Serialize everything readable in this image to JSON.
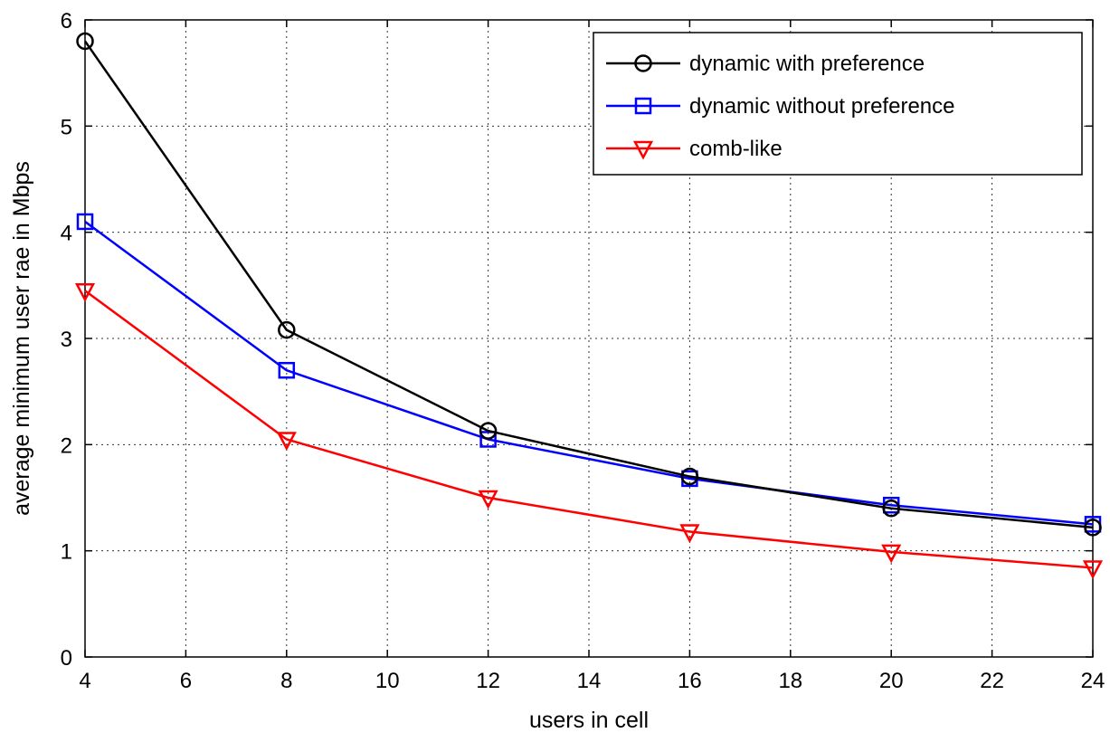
{
  "chart_data": {
    "type": "line",
    "title": "",
    "xlabel": "users in cell",
    "ylabel": "average minimum user rae in Mbps",
    "xlim": [
      4,
      24
    ],
    "ylim": [
      0,
      6
    ],
    "xticks": [
      4,
      6,
      8,
      10,
      12,
      14,
      16,
      18,
      20,
      22,
      24
    ],
    "yticks": [
      0,
      1,
      2,
      3,
      4,
      5,
      6
    ],
    "grid": true,
    "legend_position": "top-right",
    "x": [
      4,
      8,
      12,
      16,
      20,
      24
    ],
    "series": [
      {
        "name": "dynamic with preference",
        "color": "#000000",
        "marker": "circle",
        "values": [
          5.8,
          3.08,
          2.13,
          1.7,
          1.4,
          1.22
        ]
      },
      {
        "name": "dynamic without preference",
        "color": "#0000ff",
        "marker": "square",
        "values": [
          4.1,
          2.7,
          2.05,
          1.68,
          1.43,
          1.25
        ]
      },
      {
        "name": "comb-like",
        "color": "#ff0000",
        "marker": "triangle-down",
        "values": [
          3.45,
          2.05,
          1.5,
          1.18,
          0.99,
          0.84
        ]
      }
    ]
  }
}
